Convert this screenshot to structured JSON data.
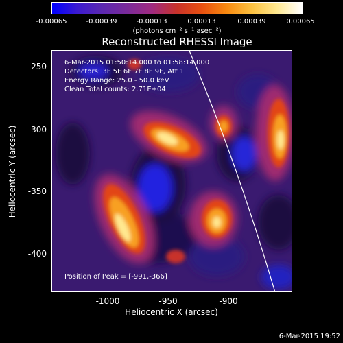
{
  "colorbar": {
    "ticks": [
      "-0.00065",
      "-0.00039",
      "-0.00013",
      "0.00013",
      "0.00039",
      "0.00065"
    ],
    "unit_label": "(photons cm⁻² s⁻¹ asec⁻²)",
    "palette": [
      "#0000ff",
      "#3b1ad0",
      "#5b28b0",
      "#7a2a9a",
      "#a02a80",
      "#c8322a",
      "#e85010",
      "#f88a10",
      "#fbc040",
      "#ffe890",
      "#ffffff"
    ]
  },
  "plot": {
    "title": "Reconstructed RHESSI Image",
    "annotations": {
      "time_range": "6-Mar-2015 01:50:14.000 to 01:58:14.000",
      "detectors": "Detectors: 3F 5F 6F 7F 8F 9F, Att 1",
      "energy_range": "Energy Range: 25.0 - 50.0 keV",
      "clean_counts": "Clean     Total counts: 2.71E+04",
      "peak_position": "Position of Peak = [-991,-366]"
    },
    "x_axis": {
      "label": "Heliocentric X (arcsec)",
      "ticks": [
        "-1000",
        "-950",
        "-900"
      ]
    },
    "y_axis": {
      "label": "Heliocentric Y (arcsec)",
      "ticks": [
        "-250",
        "-300",
        "-350",
        "-400"
      ]
    }
  },
  "footer": {
    "date": "6-Mar-2015 19:52"
  }
}
